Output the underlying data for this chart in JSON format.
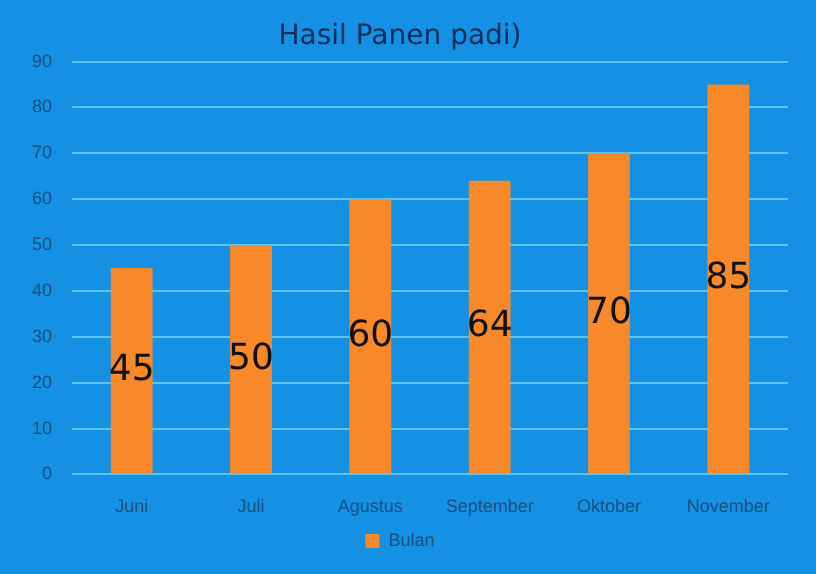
{
  "chart_data": {
    "type": "bar",
    "title": "Hasil Panen padi)",
    "categories": [
      "Juni",
      "Juli",
      "Agustus",
      "September",
      "Oktober",
      "November"
    ],
    "series": [
      {
        "name": "Bulan",
        "color": "#f7892b",
        "values": [
          45,
          50,
          60,
          64,
          70,
          85
        ]
      }
    ],
    "ylim": [
      0,
      90
    ],
    "yticks": [
      0,
      10,
      20,
      30,
      40,
      50,
      60,
      70,
      80,
      90
    ],
    "grid": "y",
    "legend": "bottom",
    "data_labels": true
  }
}
